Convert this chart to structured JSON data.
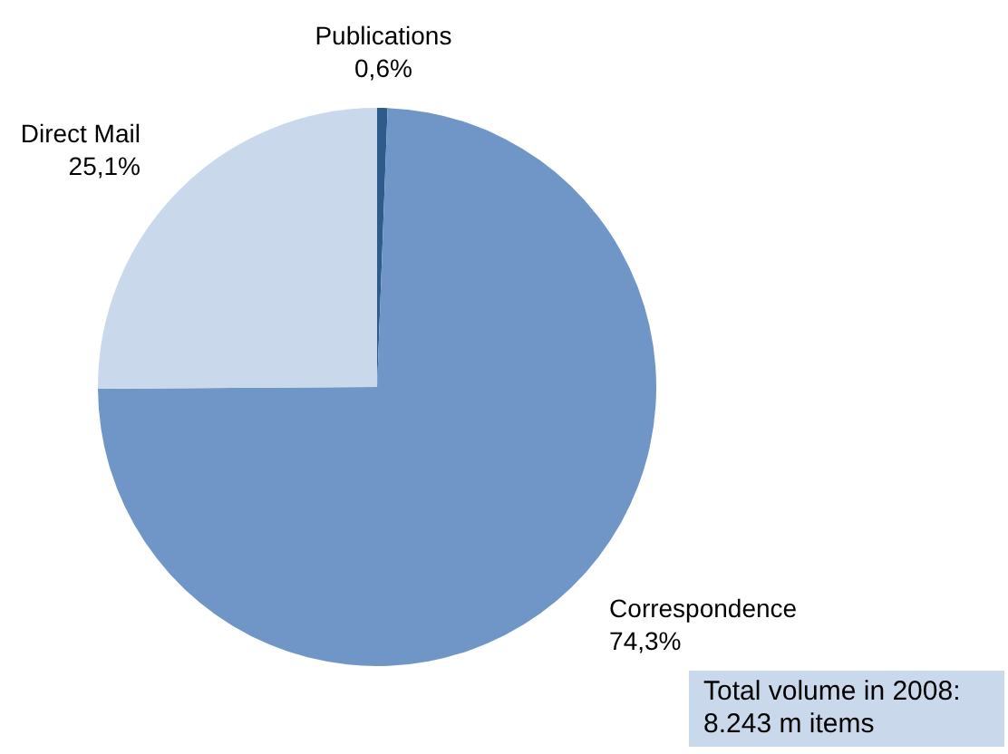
{
  "chart_data": {
    "type": "pie",
    "categories": [
      "Publications",
      "Correspondence",
      "Direct Mail"
    ],
    "values": [
      0.6,
      74.3,
      25.1
    ],
    "value_labels": [
      "0,6%",
      "74,3%",
      "25,1%"
    ],
    "colors": [
      "#2f5a8c",
      "#7096c8",
      "#c9d9eb"
    ],
    "legend": false,
    "annotations": [
      "Total volume in 2008: 8.243 m items"
    ]
  }
}
